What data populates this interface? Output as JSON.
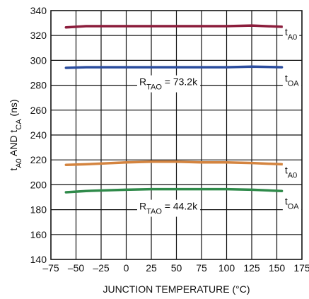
{
  "chart_data": {
    "type": "line",
    "title": "",
    "xlabel": "JUNCTION TEMPERATURE (°C)",
    "ylabel": {
      "parts": [
        {
          "text": "t",
          "sub": false
        },
        {
          "text": "A0",
          "sub": true
        },
        {
          "text": " AND t",
          "sub": false
        },
        {
          "text": "CA",
          "sub": true
        },
        {
          "text": " (ns)",
          "sub": false
        }
      ]
    },
    "xlim": [
      -75,
      175
    ],
    "ylim": [
      140,
      340
    ],
    "xticks": [
      -75,
      -50,
      -25,
      0,
      25,
      50,
      75,
      100,
      125,
      150,
      175
    ],
    "xtick_labels": [
      "–75",
      "–50",
      "–25",
      "0",
      "25",
      "50",
      "75",
      "100",
      "125",
      "150",
      "175"
    ],
    "yticks": [
      140,
      160,
      180,
      200,
      220,
      240,
      260,
      280,
      300,
      320,
      340
    ],
    "ytick_labels": [
      "140",
      "160",
      "180",
      "200",
      "220",
      "240",
      "260",
      "280",
      "300",
      "320",
      "340"
    ],
    "grid": true,
    "series": [
      {
        "color": "#8c1d3c",
        "x": [
          -60,
          -40,
          0,
          25,
          50,
          75,
          100,
          125,
          155
        ],
        "y": [
          326.5,
          327.5,
          327.5,
          327.5,
          327.5,
          327.5,
          327.5,
          328,
          327
        ]
      },
      {
        "color": "#2b4d9e",
        "x": [
          -60,
          -40,
          0,
          25,
          50,
          75,
          100,
          125,
          155
        ],
        "y": [
          294,
          294.5,
          294.5,
          294.5,
          294.5,
          294.5,
          294.5,
          295,
          294.5
        ]
      },
      {
        "color": "#d4843f",
        "x": [
          -60,
          -40,
          0,
          25,
          50,
          75,
          100,
          125,
          155
        ],
        "y": [
          216,
          216.5,
          218,
          218.5,
          218.5,
          218,
          218,
          217.5,
          216.5
        ]
      },
      {
        "color": "#2f8a4a",
        "x": [
          -60,
          -40,
          0,
          25,
          50,
          75,
          100,
          125,
          155
        ],
        "y": [
          194,
          195,
          196,
          196.5,
          196.5,
          196.5,
          196.5,
          196,
          195
        ]
      }
    ],
    "annotations": [
      {
        "x": 158,
        "y": 320,
        "parts": [
          {
            "text": "t",
            "sub": false
          },
          {
            "text": "A0",
            "sub": true
          }
        ]
      },
      {
        "x": 158,
        "y": 283,
        "parts": [
          {
            "text": "t",
            "sub": false
          },
          {
            "text": "OA",
            "sub": true
          }
        ]
      },
      {
        "x": 158,
        "y": 209,
        "parts": [
          {
            "text": "t",
            "sub": false
          },
          {
            "text": "A0",
            "sub": true
          }
        ]
      },
      {
        "x": 158,
        "y": 184,
        "parts": [
          {
            "text": "t",
            "sub": false
          },
          {
            "text": "OA",
            "sub": true
          }
        ]
      },
      {
        "x": 13,
        "y": 280,
        "parts": [
          {
            "text": "R",
            "sub": false
          },
          {
            "text": "TAO",
            "sub": true
          },
          {
            "text": " = 73.2k",
            "sub": false
          }
        ]
      },
      {
        "x": 13,
        "y": 180,
        "parts": [
          {
            "text": "R",
            "sub": false
          },
          {
            "text": "TAO",
            "sub": true
          },
          {
            "text": " = 44.2k",
            "sub": false
          }
        ]
      }
    ]
  }
}
